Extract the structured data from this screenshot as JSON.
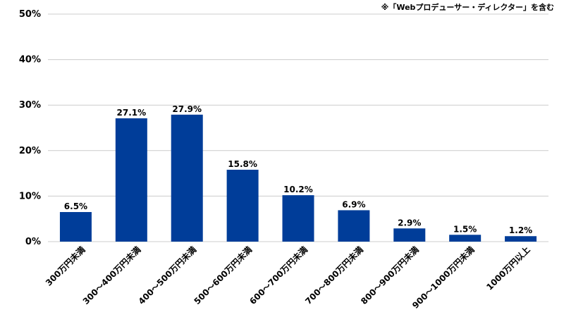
{
  "note": "※「Webプロデューサー・ディレクター」を含む",
  "chart_data": {
    "type": "bar",
    "title": "",
    "xlabel": "",
    "ylabel": "",
    "categories": [
      "300万円未満",
      "300～400万円未満",
      "400～500万円未満",
      "500～600万円未満",
      "600～700万円未満",
      "700～800万円未満",
      "800～900万円未満",
      "900～1000万円未満",
      "1000万円以上"
    ],
    "values": [
      6.5,
      27.1,
      27.9,
      15.8,
      10.2,
      6.9,
      2.9,
      1.5,
      1.2
    ],
    "data_labels": [
      "6.5%",
      "27.1%",
      "27.9%",
      "15.8%",
      "10.2%",
      "6.9%",
      "2.9%",
      "1.5%",
      "1.2%"
    ],
    "y_ticks": [
      0,
      10,
      20,
      30,
      40,
      50
    ],
    "y_tick_labels": [
      "0%",
      "10%",
      "20%",
      "30%",
      "40%",
      "50%"
    ],
    "ylim": [
      0,
      50
    ],
    "grid": true,
    "legend": "none",
    "bar_color": "#003d99",
    "grid_color": "#cccccc"
  }
}
